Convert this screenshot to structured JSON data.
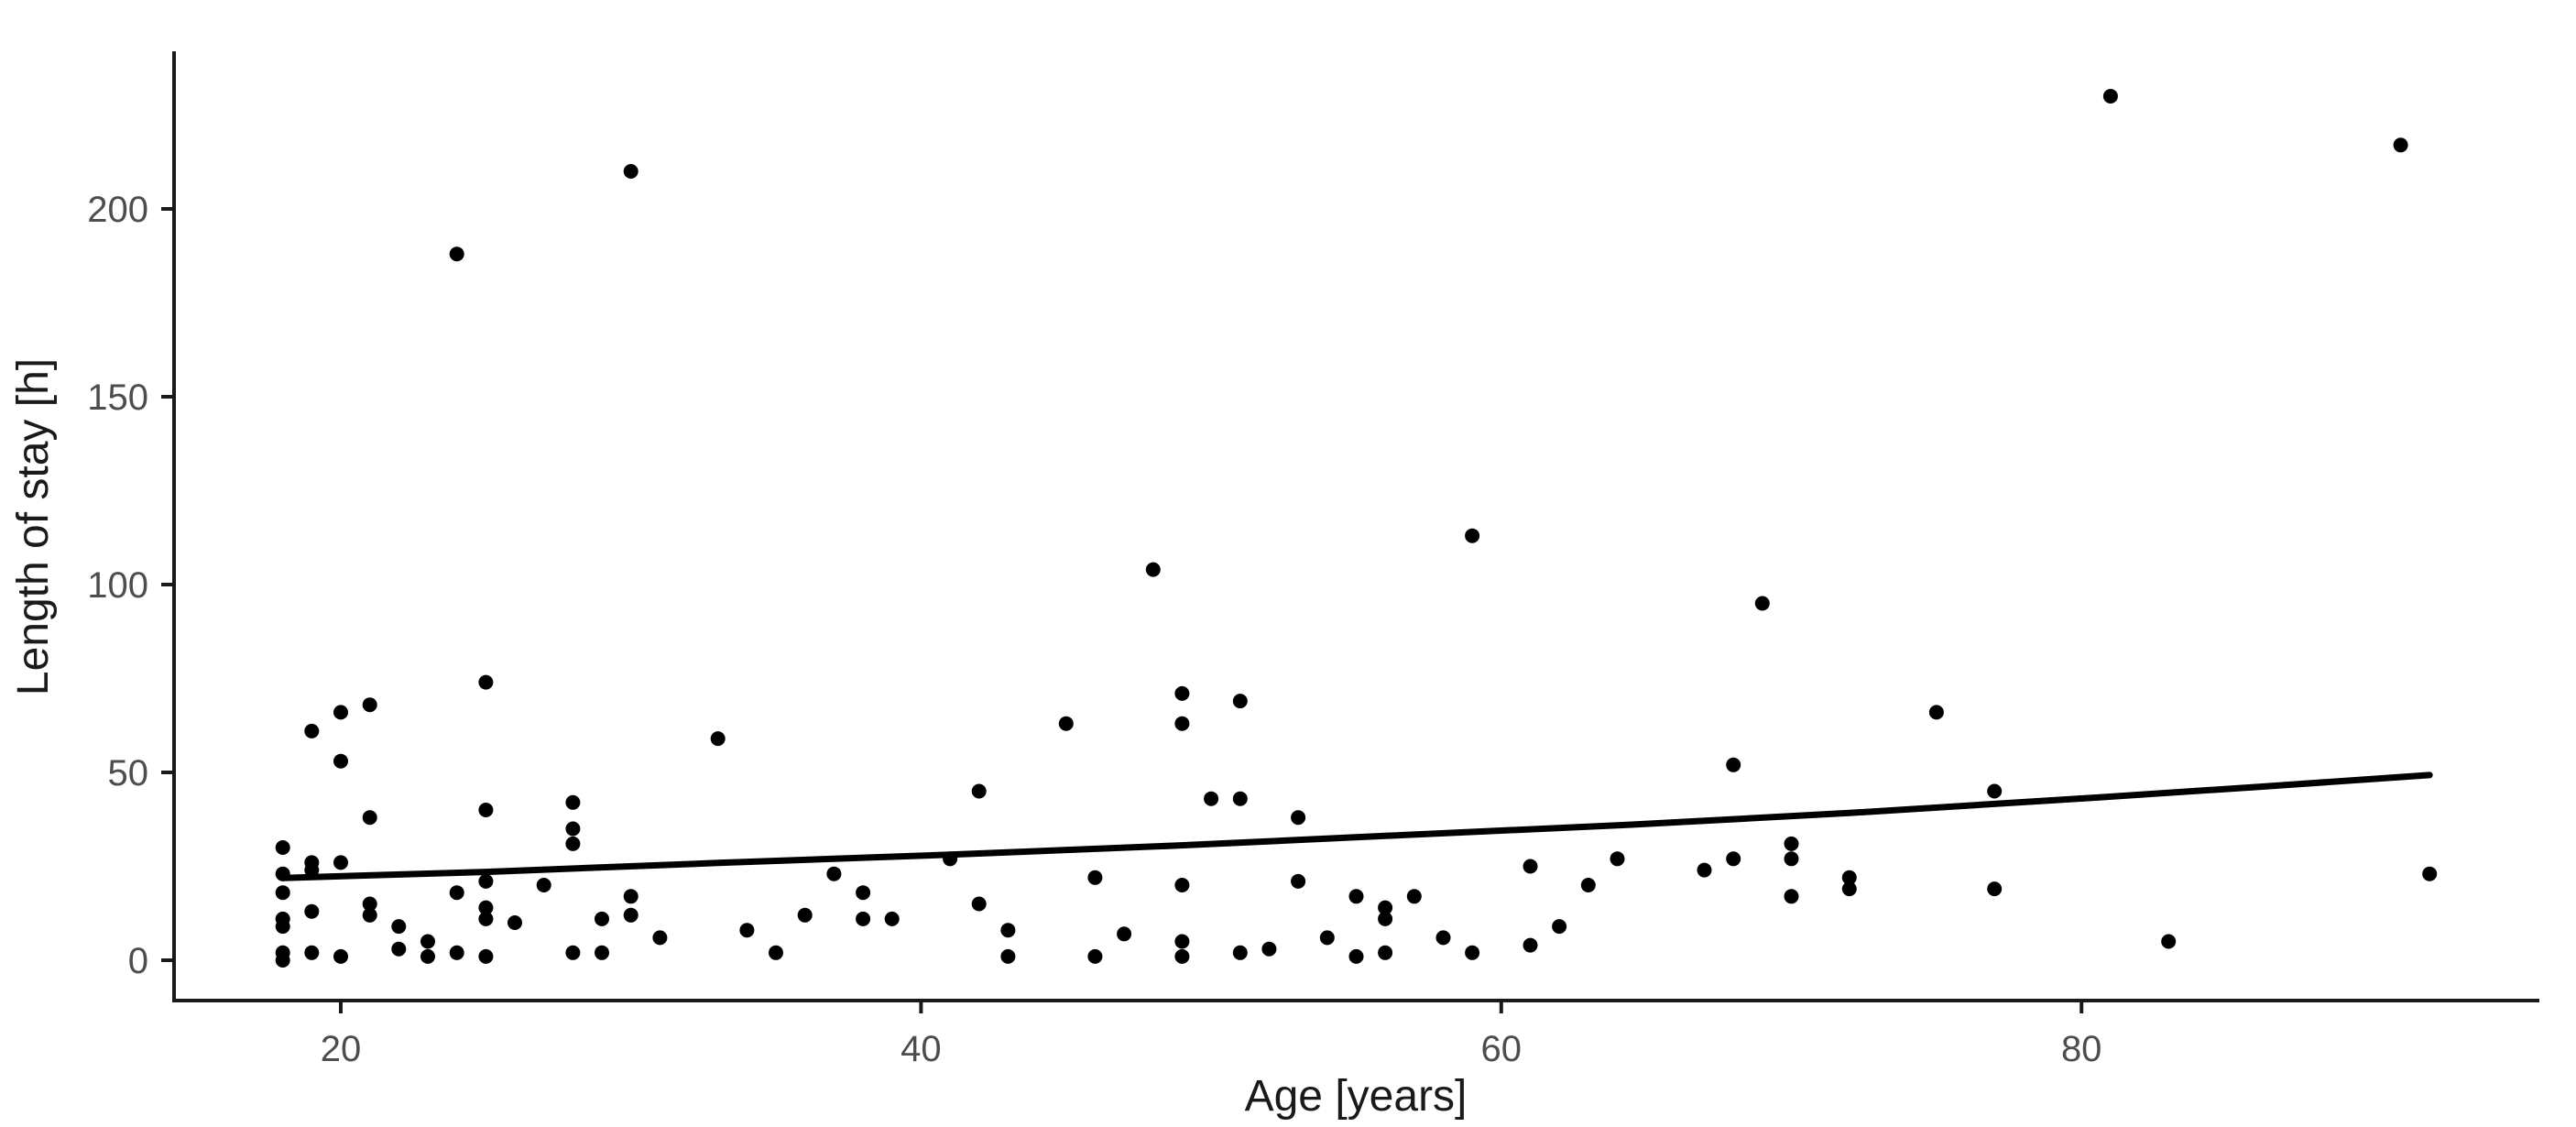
{
  "chart_data": {
    "type": "scatter",
    "title": "",
    "xlabel": "Age [years]",
    "ylabel": "Length of stay [h]",
    "x_ticks": [
      20,
      40,
      60,
      80
    ],
    "y_ticks": [
      0,
      50,
      100,
      150,
      200
    ],
    "xlim": [
      14.3,
      95.7
    ],
    "ylim": [
      -11.5,
      241.5
    ],
    "grid": "off",
    "legend": "none",
    "background_color": "#ffffff",
    "point_color": "#000000",
    "trend_color": "#000000",
    "axis_color": "#1a1a1a",
    "tick_label_color": "#4d4d4d",
    "points": [
      [
        18,
        30
      ],
      [
        18,
        23
      ],
      [
        18,
        18
      ],
      [
        18,
        11
      ],
      [
        18,
        9
      ],
      [
        18,
        2
      ],
      [
        18,
        0
      ],
      [
        19,
        61
      ],
      [
        19,
        26
      ],
      [
        19,
        24
      ],
      [
        19,
        13
      ],
      [
        19,
        2
      ],
      [
        20,
        66
      ],
      [
        20,
        53
      ],
      [
        20,
        26
      ],
      [
        20,
        1
      ],
      [
        21,
        68
      ],
      [
        21,
        38
      ],
      [
        21,
        15
      ],
      [
        21,
        12
      ],
      [
        22,
        9
      ],
      [
        22,
        3
      ],
      [
        23,
        5
      ],
      [
        23,
        1
      ],
      [
        24,
        188
      ],
      [
        24,
        18
      ],
      [
        24,
        2
      ],
      [
        25,
        74
      ],
      [
        25,
        40
      ],
      [
        25,
        21
      ],
      [
        25,
        14
      ],
      [
        25,
        11
      ],
      [
        25,
        1
      ],
      [
        26,
        10
      ],
      [
        27,
        20
      ],
      [
        28,
        42
      ],
      [
        28,
        35
      ],
      [
        28,
        31
      ],
      [
        28,
        2
      ],
      [
        29,
        11
      ],
      [
        29,
        2
      ],
      [
        30,
        210
      ],
      [
        30,
        17
      ],
      [
        30,
        12
      ],
      [
        31,
        6
      ],
      [
        33,
        59
      ],
      [
        34,
        8
      ],
      [
        35,
        2
      ],
      [
        36,
        12
      ],
      [
        37,
        23
      ],
      [
        38,
        18
      ],
      [
        38,
        11
      ],
      [
        39,
        11
      ],
      [
        41,
        27
      ],
      [
        42,
        45
      ],
      [
        42,
        15
      ],
      [
        43,
        8
      ],
      [
        43,
        1
      ],
      [
        45,
        63
      ],
      [
        46,
        22
      ],
      [
        46,
        1
      ],
      [
        47,
        7
      ],
      [
        48,
        104
      ],
      [
        49,
        71
      ],
      [
        49,
        63
      ],
      [
        49,
        20
      ],
      [
        49,
        5
      ],
      [
        49,
        1
      ],
      [
        50,
        43
      ],
      [
        51,
        69
      ],
      [
        51,
        43
      ],
      [
        51,
        2
      ],
      [
        52,
        3
      ],
      [
        53,
        38
      ],
      [
        53,
        21
      ],
      [
        54,
        6
      ],
      [
        55,
        17
      ],
      [
        55,
        1
      ],
      [
        56,
        14
      ],
      [
        56,
        11
      ],
      [
        56,
        2
      ],
      [
        57,
        17
      ],
      [
        58,
        6
      ],
      [
        59,
        113
      ],
      [
        59,
        2
      ],
      [
        61,
        25
      ],
      [
        61,
        4
      ],
      [
        62,
        9
      ],
      [
        63,
        20
      ],
      [
        64,
        27
      ],
      [
        67,
        24
      ],
      [
        68,
        52
      ],
      [
        68,
        27
      ],
      [
        69,
        95
      ],
      [
        70,
        31
      ],
      [
        70,
        27
      ],
      [
        70,
        17
      ],
      [
        72,
        22
      ],
      [
        72,
        19
      ],
      [
        75,
        66
      ],
      [
        77,
        45
      ],
      [
        77,
        19
      ],
      [
        81,
        230
      ],
      [
        83,
        5
      ],
      [
        91,
        217
      ],
      [
        92,
        23
      ]
    ],
    "trend_line": {
      "type": "smooth",
      "points": [
        [
          18,
          21.9
        ],
        [
          25,
          23.5
        ],
        [
          33,
          25.9
        ],
        [
          41,
          28.1
        ],
        [
          48.7,
          30.5
        ],
        [
          56,
          33.1
        ],
        [
          64.5,
          36.1
        ],
        [
          72,
          39.2
        ],
        [
          80.3,
          43.2
        ],
        [
          86,
          46.1
        ],
        [
          92,
          49.3
        ]
      ]
    }
  }
}
